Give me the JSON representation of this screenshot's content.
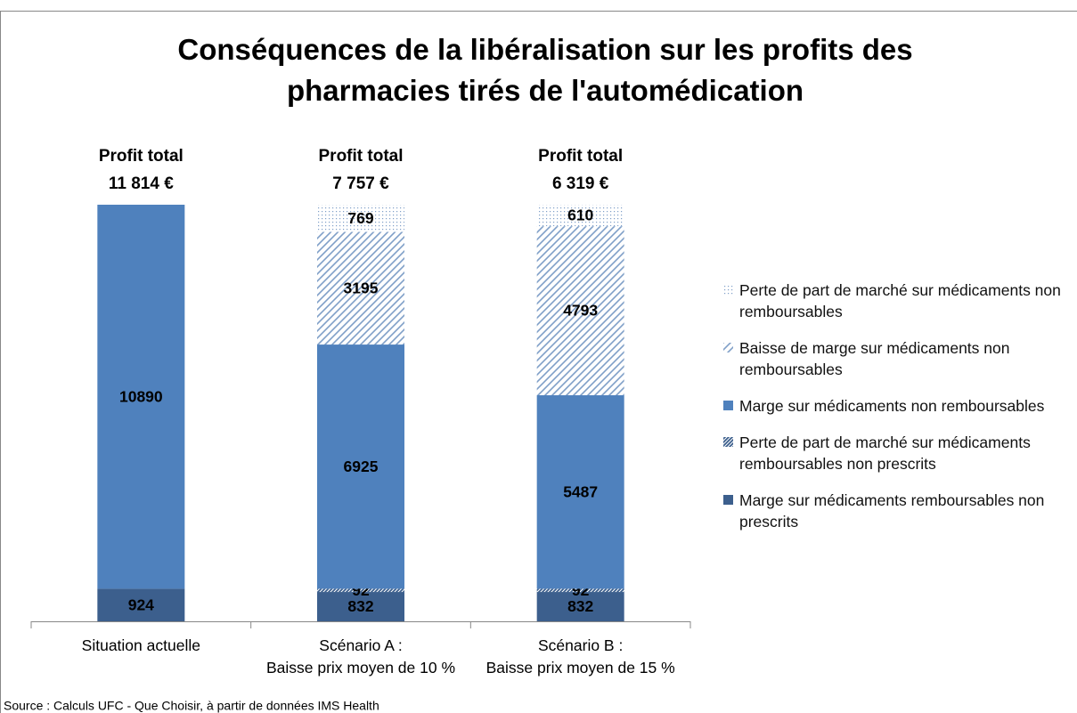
{
  "chart_data": {
    "type": "stacked_bar",
    "title": "Conséquences de la libéralisation sur les profits des\npharmacies tirés de l'automédication",
    "categories": [
      "Situation actuelle",
      "Scénario A :\nBaisse prix moyen de 10 %",
      "Scénario B :\nBaisse prix moyen de 15 %"
    ],
    "annotations": [
      "Profit total\n11 814 €",
      "Profit total\n7 757 €",
      "Profit total\n6 319 €"
    ],
    "series": [
      {
        "name": "Marge sur médicaments remboursables non prescrits",
        "color": "#3c5f8d",
        "fill": "solid",
        "values": [
          924,
          832,
          832
        ]
      },
      {
        "name": "Perte de part de marché sur médicaments remboursables non prescrits",
        "color": "#3c5f8d",
        "fill": "dense-hatch",
        "values": [
          null,
          92,
          92
        ]
      },
      {
        "name": "Marge sur médicaments non remboursables",
        "color": "#4f81bd",
        "fill": "solid",
        "values": [
          10890,
          6925,
          5487
        ]
      },
      {
        "name": "Baisse de marge sur médicaments non remboursables",
        "color": "#7f9fc8",
        "fill": "hatch",
        "values": [
          null,
          3195,
          4793
        ]
      },
      {
        "name": "Perte de part de marché sur médicaments non remboursables",
        "color": "#7f9fc8",
        "fill": "dots",
        "values": [
          null,
          769,
          610
        ]
      }
    ],
    "ylim": [
      0,
      12000
    ],
    "source": "Source : Calculs UFC - Que Choisir, à partir de données IMS Health"
  }
}
